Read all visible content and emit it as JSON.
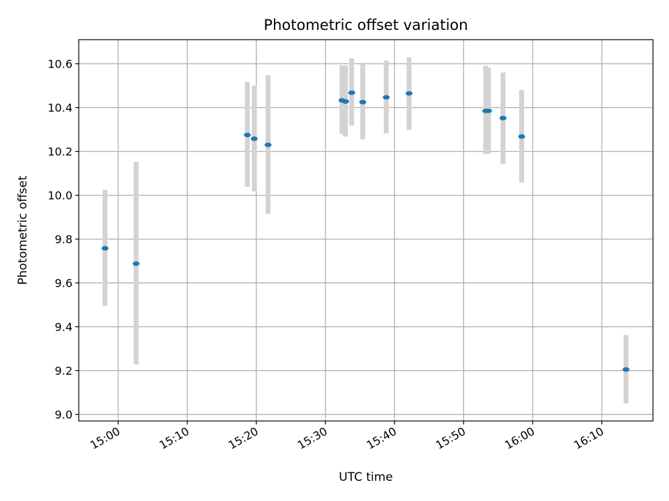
{
  "chart_data": {
    "type": "scatter",
    "title": "Photometric offset variation",
    "xlabel": "UTC time",
    "ylabel": "Photometric offset",
    "grid": true,
    "ylim": [
      8.97,
      10.71
    ],
    "xlim": [
      "14:54:18",
      "16:17:24"
    ],
    "yticks": [
      9.0,
      9.2,
      9.4,
      9.6,
      9.8,
      10.0,
      10.2,
      10.4,
      10.6
    ],
    "xticks": [
      "15:00",
      "15:10",
      "15:20",
      "15:30",
      "15:40",
      "15:50",
      "16:00",
      "16:10"
    ],
    "points": [
      {
        "x": "14:58:06",
        "y": 9.758,
        "ylow": 9.495,
        "yhigh": 10.025
      },
      {
        "x": "15:02:36",
        "y": 9.688,
        "ylow": 9.228,
        "yhigh": 10.152
      },
      {
        "x": "15:18:42",
        "y": 10.275,
        "ylow": 10.038,
        "yhigh": 10.518
      },
      {
        "x": "15:19:42",
        "y": 10.258,
        "ylow": 10.018,
        "yhigh": 10.5
      },
      {
        "x": "15:21:42",
        "y": 10.23,
        "ylow": 9.915,
        "yhigh": 10.548
      },
      {
        "x": "15:32:24",
        "y": 10.433,
        "ylow": 10.28,
        "yhigh": 10.592
      },
      {
        "x": "15:32:54",
        "y": 10.428,
        "ylow": 10.268,
        "yhigh": 10.592
      },
      {
        "x": "15:33:48",
        "y": 10.468,
        "ylow": 10.318,
        "yhigh": 10.625
      },
      {
        "x": "15:35:24",
        "y": 10.425,
        "ylow": 10.255,
        "yhigh": 10.598
      },
      {
        "x": "15:38:48",
        "y": 10.447,
        "ylow": 10.282,
        "yhigh": 10.615
      },
      {
        "x": "15:42:06",
        "y": 10.465,
        "ylow": 10.298,
        "yhigh": 10.63
      },
      {
        "x": "15:53:12",
        "y": 10.385,
        "ylow": 10.188,
        "yhigh": 10.59
      },
      {
        "x": "15:53:36",
        "y": 10.385,
        "ylow": 10.19,
        "yhigh": 10.582
      },
      {
        "x": "15:55:42",
        "y": 10.352,
        "ylow": 10.142,
        "yhigh": 10.56
      },
      {
        "x": "15:58:24",
        "y": 10.268,
        "ylow": 10.058,
        "yhigh": 10.48
      },
      {
        "x": "16:13:30",
        "y": 9.205,
        "ylow": 9.05,
        "yhigh": 9.362
      }
    ],
    "marker_color": "#1f77b4",
    "errorbar_color": "#d3d3d3",
    "grid_color": "#b0b0b0"
  }
}
